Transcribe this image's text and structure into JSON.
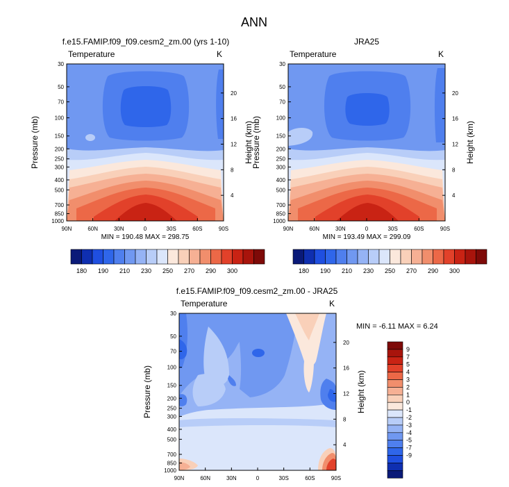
{
  "figure_title": "ANN",
  "colors": {
    "blue_scale": [
      "#0a1a78",
      "#0f2fb0",
      "#1f4fe0",
      "#2f66ea",
      "#4f7fee",
      "#7098f1",
      "#95b3f5",
      "#b8cdf8",
      "#dbe6fb"
    ],
    "warm_scale": [
      "#fbe8dc",
      "#f9d0b9",
      "#f6b094",
      "#f18e6c",
      "#ec6847",
      "#e2412a",
      "#c92314",
      "#a8140c",
      "#7e0a08"
    ],
    "ref_line": "#000000"
  },
  "chart_data": [
    {
      "type": "heatmap",
      "panel": "model",
      "title": "f.e15.FAMIP.f09_f09.cesm2_zm.00 (yrs 1-10)",
      "left_label": "Temperature",
      "units": "K",
      "ylabel": "Pressure (mb)",
      "y2label": "Height (km)",
      "xticks": [
        "90N",
        "60N",
        "30N",
        "0",
        "30S",
        "60S",
        "90S"
      ],
      "yticks": [
        "30",
        "50",
        "70",
        "100",
        "150",
        "200",
        "250",
        "300",
        "400",
        "500",
        "700",
        "850",
        "1000"
      ],
      "y2ticks": [
        "20",
        "16",
        "12",
        "8",
        "4"
      ],
      "min_max": "MIN = 190.48  MAX = 298.75",
      "colorbar_labels": [
        "180",
        "190",
        "210",
        "230",
        "250",
        "270",
        "290",
        "300"
      ],
      "xlim": [
        90,
        -90
      ],
      "ylim": [
        30,
        1000
      ]
    },
    {
      "type": "heatmap",
      "panel": "obs",
      "title": "JRA25",
      "left_label": "Temperature",
      "units": "K",
      "ylabel": "Pressure (mb)",
      "y2label": "Height (km)",
      "xticks": [
        "90N",
        "60N",
        "30N",
        "0",
        "30S",
        "60S",
        "90S"
      ],
      "yticks": [
        "30",
        "50",
        "70",
        "100",
        "150",
        "200",
        "250",
        "300",
        "400",
        "500",
        "700",
        "850",
        "1000"
      ],
      "y2ticks": [
        "20",
        "16",
        "12",
        "8",
        "4"
      ],
      "min_max": "MIN = 193.49  MAX = 299.09",
      "colorbar_labels": [
        "180",
        "190",
        "210",
        "230",
        "250",
        "270",
        "290",
        "300"
      ],
      "xlim": [
        90,
        -90
      ],
      "ylim": [
        30,
        1000
      ]
    },
    {
      "type": "heatmap",
      "panel": "diff",
      "title": "f.e15.FAMIP.f09_f09.cesm2_zm.00 - JRA25",
      "left_label": "Temperature",
      "units": "K",
      "ylabel": "Pressure (mb)",
      "y2label": "Height (km)",
      "xticks": [
        "90N",
        "60N",
        "30N",
        "0",
        "30S",
        "60S",
        "90S"
      ],
      "yticks": [
        "30",
        "50",
        "70",
        "100",
        "150",
        "200",
        "250",
        "300",
        "400",
        "500",
        "700",
        "850",
        "1000"
      ],
      "y2ticks": [
        "20",
        "16",
        "12",
        "8",
        "4"
      ],
      "min_max": "MIN =  -6.11  MAX =   6.24",
      "colorbar_labels": [
        "9",
        "7",
        "5",
        "4",
        "3",
        "2",
        "1",
        "0",
        "-1",
        "-2",
        "-3",
        "-4",
        "-5",
        "-7",
        "-9"
      ],
      "xlim": [
        90,
        -90
      ],
      "ylim": [
        30,
        1000
      ]
    }
  ]
}
